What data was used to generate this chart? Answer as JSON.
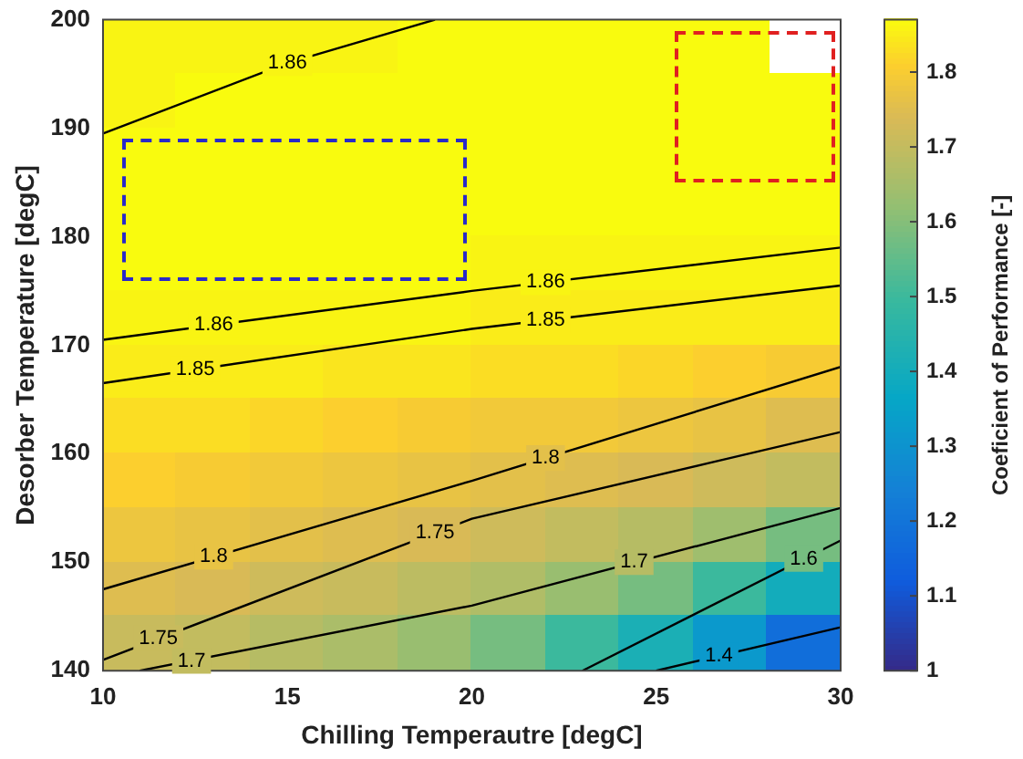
{
  "chart_data": {
    "type": "heatmap",
    "xlabel": "Chilling Temperautre [degC]",
    "ylabel": "Desorber Temperature [degC]",
    "clabel": "Coeficient of Performance [-]",
    "x": [
      11,
      13,
      15,
      17,
      19,
      21,
      23,
      25,
      27,
      29
    ],
    "y": [
      197.5,
      192.5,
      187.5,
      182.5,
      177.5,
      172.5,
      167.5,
      162.5,
      157.5,
      152.5,
      147.5,
      142.5
    ],
    "xlim": [
      10,
      30
    ],
    "xticks": [
      10,
      15,
      20,
      25,
      30
    ],
    "ylim": [
      140,
      200
    ],
    "yticks": [
      140,
      150,
      160,
      170,
      180,
      190,
      200
    ],
    "clim": [
      1,
      1.87
    ],
    "cticks": [
      1,
      1.1,
      1.2,
      1.3,
      1.4,
      1.5,
      1.6,
      1.7,
      1.8
    ],
    "cells": [
      [
        1.86,
        1.86,
        1.86,
        1.86,
        1.87,
        1.87,
        1.87,
        1.87,
        1.87,
        null
      ],
      [
        1.86,
        1.87,
        1.87,
        1.87,
        1.87,
        1.87,
        1.87,
        1.87,
        1.87,
        1.87
      ],
      [
        1.87,
        1.87,
        1.87,
        1.87,
        1.87,
        1.87,
        1.87,
        1.87,
        1.87,
        1.87
      ],
      [
        1.87,
        1.87,
        1.87,
        1.87,
        1.87,
        1.87,
        1.87,
        1.87,
        1.87,
        1.87
      ],
      [
        1.87,
        1.87,
        1.87,
        1.87,
        1.87,
        1.86,
        1.86,
        1.86,
        1.86,
        1.86
      ],
      [
        1.86,
        1.86,
        1.86,
        1.86,
        1.86,
        1.85,
        1.85,
        1.85,
        1.85,
        1.85
      ],
      [
        1.85,
        1.85,
        1.85,
        1.84,
        1.84,
        1.83,
        1.83,
        1.82,
        1.81,
        1.8
      ],
      [
        1.83,
        1.83,
        1.82,
        1.81,
        1.8,
        1.79,
        1.79,
        1.78,
        1.77,
        1.75
      ],
      [
        1.81,
        1.8,
        1.79,
        1.78,
        1.77,
        1.76,
        1.75,
        1.74,
        1.72,
        1.7
      ],
      [
        1.78,
        1.77,
        1.76,
        1.75,
        1.74,
        1.72,
        1.7,
        1.68,
        1.64,
        1.58
      ],
      [
        1.75,
        1.74,
        1.72,
        1.71,
        1.69,
        1.67,
        1.63,
        1.58,
        1.5,
        1.4
      ],
      [
        1.71,
        1.7,
        1.68,
        1.66,
        1.63,
        1.58,
        1.5,
        1.42,
        1.32,
        1.18
      ]
    ],
    "series": [
      {
        "type": "line",
        "color": "#000000",
        "x": [
          10,
          15,
          19
        ],
        "values": [
          189.5,
          196,
          200
        ]
      },
      {
        "type": "line",
        "color": "#000000",
        "x": [
          10,
          20,
          30
        ],
        "values": [
          170.5,
          175,
          179
        ]
      },
      {
        "type": "line",
        "color": "#000000",
        "x": [
          10,
          20,
          30
        ],
        "values": [
          166.5,
          171.5,
          175.5
        ]
      },
      {
        "type": "line",
        "color": "#000000",
        "x": [
          10,
          20,
          30
        ],
        "values": [
          147.5,
          157.5,
          168
        ]
      },
      {
        "type": "line",
        "color": "#000000",
        "x": [
          10,
          20,
          30
        ],
        "values": [
          141,
          154,
          162
        ]
      },
      {
        "type": "line",
        "color": "#000000",
        "x": [
          11,
          20,
          30
        ],
        "values": [
          140,
          146,
          155
        ]
      },
      {
        "type": "line",
        "color": "#000000",
        "x": [
          23,
          30
        ],
        "values": [
          140,
          152
        ]
      },
      {
        "type": "line",
        "color": "#000000",
        "x": [
          25,
          30
        ],
        "values": [
          140,
          144
        ]
      }
    ],
    "annotations": [
      {
        "text": "1.86",
        "x": 15,
        "y": 196
      },
      {
        "text": "1.86",
        "x": 22,
        "y": 175.8
      },
      {
        "text": "1.86",
        "x": 13,
        "y": 171.9
      },
      {
        "text": "1.85",
        "x": 22,
        "y": 172.3
      },
      {
        "text": "1.85",
        "x": 12.5,
        "y": 167.8
      },
      {
        "text": "1.8",
        "x": 22,
        "y": 159.6
      },
      {
        "text": "1.8",
        "x": 13,
        "y": 150.5
      },
      {
        "text": "1.75",
        "x": 19,
        "y": 152.7
      },
      {
        "text": "1.75",
        "x": 11.5,
        "y": 143
      },
      {
        "text": "1.7",
        "x": 24.4,
        "y": 150
      },
      {
        "text": "1.7",
        "x": 12.4,
        "y": 140.9
      },
      {
        "text": "1.6",
        "x": 29,
        "y": 150.3
      },
      {
        "text": "1.4",
        "x": 26.7,
        "y": 141.4
      }
    ]
  }
}
